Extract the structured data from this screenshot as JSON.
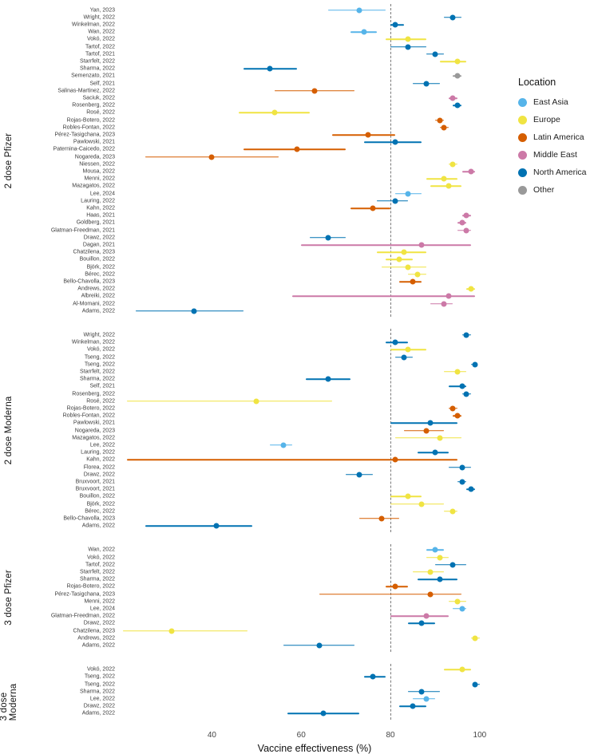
{
  "chart_data": {
    "type": "scatter",
    "subtype": "forest-plot",
    "title": "",
    "xlabel": "Vaccine effectiveness (%)",
    "ylabel": "",
    "xlim": [
      19,
      107
    ],
    "x_ticks": [
      40,
      60,
      80,
      100
    ],
    "reference_line": 80,
    "grid": false,
    "legend": {
      "title": "Location",
      "position": "right",
      "entries": [
        {
          "label": "East Asia",
          "color": "#56B4E9"
        },
        {
          "label": "Europe",
          "color": "#F0E442"
        },
        {
          "label": "Latin America",
          "color": "#D55E00"
        },
        {
          "label": "Middle East",
          "color": "#CC79A7"
        },
        {
          "label": "North America",
          "color": "#0072B2"
        },
        {
          "label": "Other",
          "color": "#999999"
        }
      ]
    },
    "panels": [
      {
        "label": "2 dose Pfizer",
        "studies": [
          {
            "study": "Yan, 2023",
            "location": "East Asia",
            "est": 73,
            "lo": 66,
            "hi": 79
          },
          {
            "study": "Wright, 2022",
            "location": "North America",
            "est": 94,
            "lo": 92,
            "hi": 96
          },
          {
            "study": "Winkelman, 2022",
            "location": "North America",
            "est": 81,
            "lo": 80,
            "hi": 83
          },
          {
            "study": "Wan, 2022",
            "location": "East Asia",
            "est": 74,
            "lo": 71,
            "hi": 77
          },
          {
            "study": "Vokó, 2022",
            "location": "Europe",
            "est": 84,
            "lo": 79,
            "hi": 88
          },
          {
            "study": "Tartof, 2022",
            "location": "North America",
            "est": 84,
            "lo": 80,
            "hi": 88
          },
          {
            "study": "Tartof, 2021",
            "location": "North America",
            "est": 90,
            "lo": 88,
            "hi": 92
          },
          {
            "study": "Starrfelt, 2022",
            "location": "Europe",
            "est": 95,
            "lo": 91,
            "hi": 97
          },
          {
            "study": "Sharma, 2022",
            "location": "North America",
            "est": 53,
            "lo": 47,
            "hi": 59
          },
          {
            "study": "Semenzato, 2021",
            "location": "Other",
            "est": 95,
            "lo": 94,
            "hi": 96
          },
          {
            "study": "Self, 2021",
            "location": "North America",
            "est": 88,
            "lo": 85,
            "hi": 91
          },
          {
            "study": "Salinas-Martinez, 2022",
            "location": "Latin America",
            "est": 63,
            "lo": 54,
            "hi": 72
          },
          {
            "study": "Saciuk, 2022",
            "location": "Middle East",
            "est": 94,
            "lo": 93,
            "hi": 95
          },
          {
            "study": "Rosenberg, 2022",
            "location": "North America",
            "est": 95,
            "lo": 94,
            "hi": 96
          },
          {
            "study": "Rosé, 2022",
            "location": "Europe",
            "est": 54,
            "lo": 46,
            "hi": 62
          },
          {
            "study": "Rojas-Botero, 2022",
            "location": "Latin America",
            "est": 91,
            "lo": 90,
            "hi": 92
          },
          {
            "study": "Robles-Fontan, 2022",
            "location": "Latin America",
            "est": 92,
            "lo": 91,
            "hi": 93
          },
          {
            "study": "Pérez-Tasigchana, 2023",
            "location": "Latin America",
            "est": 75,
            "lo": 67,
            "hi": 81
          },
          {
            "study": "Pawlowski, 2021",
            "location": "North America",
            "est": 81,
            "lo": 74,
            "hi": 87
          },
          {
            "study": "Paternina-Caicedo, 2022",
            "location": "Latin America",
            "est": 59,
            "lo": 47,
            "hi": 70
          },
          {
            "study": "Nogareda, 2023",
            "location": "Latin America",
            "est": 40,
            "lo": 25,
            "hi": 55
          },
          {
            "study": "Niessen, 2022",
            "location": "Europe",
            "est": 94,
            "lo": 93,
            "hi": 95
          },
          {
            "study": "Mousa, 2022",
            "location": "Middle East",
            "est": 98,
            "lo": 96,
            "hi": 99
          },
          {
            "study": "Menni, 2022",
            "location": "Europe",
            "est": 92,
            "lo": 88,
            "hi": 95
          },
          {
            "study": "Mazagatos, 2022",
            "location": "Europe",
            "est": 93,
            "lo": 89,
            "hi": 96
          },
          {
            "study": "Lee, 2024",
            "location": "East Asia",
            "est": 84,
            "lo": 81,
            "hi": 87
          },
          {
            "study": "Lauring, 2022",
            "location": "North America",
            "est": 81,
            "lo": 77,
            "hi": 84
          },
          {
            "study": "Kahn, 2022",
            "location": "Latin America",
            "est": 76,
            "lo": 71,
            "hi": 80
          },
          {
            "study": "Haas, 2021",
            "location": "Middle East",
            "est": 97,
            "lo": 96,
            "hi": 98
          },
          {
            "study": "Goldberg, 2021",
            "location": "Middle East",
            "est": 96,
            "lo": 95,
            "hi": 97
          },
          {
            "study": "Glatman-Freedman, 2021",
            "location": "Middle East",
            "est": 97,
            "lo": 95,
            "hi": 98
          },
          {
            "study": "Drawz, 2022",
            "location": "North America",
            "est": 66,
            "lo": 62,
            "hi": 70
          },
          {
            "study": "Dagan, 2021",
            "location": "Middle East",
            "est": 87,
            "lo": 60,
            "hi": 98
          },
          {
            "study": "Chatzilena, 2023",
            "location": "Europe",
            "est": 83,
            "lo": 77,
            "hi": 88
          },
          {
            "study": "Bouillon, 2022",
            "location": "Europe",
            "est": 82,
            "lo": 79,
            "hi": 85
          },
          {
            "study": "Björk, 2022",
            "location": "Europe",
            "est": 84,
            "lo": 78,
            "hi": 88
          },
          {
            "study": "Bérec, 2022",
            "location": "Europe",
            "est": 86,
            "lo": 84,
            "hi": 88
          },
          {
            "study": "Bello-Chavolla, 2023",
            "location": "Latin America",
            "est": 85,
            "lo": 82,
            "hi": 87
          },
          {
            "study": "Andrews, 2022",
            "location": "Europe",
            "est": 98,
            "lo": 97,
            "hi": 99
          },
          {
            "study": "Albreiki, 2022",
            "location": "Middle East",
            "est": 93,
            "lo": 58,
            "hi": 99
          },
          {
            "study": "Al-Momani, 2022",
            "location": "Middle East",
            "est": 92,
            "lo": 89,
            "hi": 94
          },
          {
            "study": "Adams, 2022",
            "location": "North America",
            "est": 36,
            "lo": 23,
            "hi": 47
          }
        ]
      },
      {
        "label": "2 dose Moderna",
        "studies": [
          {
            "study": "Wright, 2022",
            "location": "North America",
            "est": 97,
            "lo": 96,
            "hi": 98
          },
          {
            "study": "Winkelman, 2022",
            "location": "North America",
            "est": 81,
            "lo": 79,
            "hi": 84
          },
          {
            "study": "Vokó, 2022",
            "location": "Europe",
            "est": 84,
            "lo": 80,
            "hi": 88
          },
          {
            "study": "Tseng, 2022",
            "location": "North America",
            "est": 83,
            "lo": 81,
            "hi": 85
          },
          {
            "study": "Tseng, 2022",
            "location": "North America",
            "est": 99,
            "lo": 98,
            "hi": 99
          },
          {
            "study": "Starrfelt, 2022",
            "location": "Europe",
            "est": 95,
            "lo": 92,
            "hi": 97
          },
          {
            "study": "Sharma, 2022",
            "location": "North America",
            "est": 66,
            "lo": 61,
            "hi": 71
          },
          {
            "study": "Self, 2021",
            "location": "North America",
            "est": 96,
            "lo": 93,
            "hi": 97
          },
          {
            "study": "Rosenberg, 2022",
            "location": "North America",
            "est": 97,
            "lo": 96,
            "hi": 98
          },
          {
            "study": "Rosé, 2022",
            "location": "Europe",
            "est": 50,
            "lo": 21,
            "hi": 67
          },
          {
            "study": "Rojas-Botero, 2022",
            "location": "Latin America",
            "est": 94,
            "lo": 93,
            "hi": 95
          },
          {
            "study": "Robles-Fontan, 2022",
            "location": "Latin America",
            "est": 95,
            "lo": 94,
            "hi": 96
          },
          {
            "study": "Pawlowski, 2021",
            "location": "North America",
            "est": 89,
            "lo": 80,
            "hi": 95
          },
          {
            "study": "Nogareda, 2023",
            "location": "Latin America",
            "est": 88,
            "lo": 83,
            "hi": 92
          },
          {
            "study": "Mazagatos, 2022",
            "location": "Europe",
            "est": 91,
            "lo": 81,
            "hi": 96
          },
          {
            "study": "Lee, 2022",
            "location": "East Asia",
            "est": 56,
            "lo": 53,
            "hi": 58
          },
          {
            "study": "Lauring, 2022",
            "location": "North America",
            "est": 90,
            "lo": 86,
            "hi": 93
          },
          {
            "study": "Kahn, 2022",
            "location": "Latin America",
            "est": 81,
            "lo": 21,
            "hi": 95
          },
          {
            "study": "Florea, 2022",
            "location": "North America",
            "est": 96,
            "lo": 93,
            "hi": 98
          },
          {
            "study": "Drawz, 2022",
            "location": "North America",
            "est": 73,
            "lo": 70,
            "hi": 76
          },
          {
            "study": "Bruxvoort, 2021",
            "location": "North America",
            "est": 96,
            "lo": 95,
            "hi": 97
          },
          {
            "study": "Bruxvoort, 2021",
            "location": "North America",
            "est": 98,
            "lo": 97,
            "hi": 99
          },
          {
            "study": "Bouillon, 2022",
            "location": "Europe",
            "est": 84,
            "lo": 80,
            "hi": 87
          },
          {
            "study": "Björk, 2022",
            "location": "Europe",
            "est": 87,
            "lo": 80,
            "hi": 92
          },
          {
            "study": "Bérec, 2022",
            "location": "Europe",
            "est": 94,
            "lo": 92,
            "hi": 95
          },
          {
            "study": "Bello-Chavolla, 2023",
            "location": "Latin America",
            "est": 78,
            "lo": 73,
            "hi": 82
          },
          {
            "study": "Adams, 2022",
            "location": "North America",
            "est": 41,
            "lo": 25,
            "hi": 49
          }
        ]
      },
      {
        "label": "3 dose Pfizer",
        "studies": [
          {
            "study": "Wan, 2022",
            "location": "East Asia",
            "est": 90,
            "lo": 88,
            "hi": 92
          },
          {
            "study": "Vokó, 2022",
            "location": "Europe",
            "est": 91,
            "lo": 88,
            "hi": 93
          },
          {
            "study": "Tartof, 2022",
            "location": "North America",
            "est": 94,
            "lo": 90,
            "hi": 97
          },
          {
            "study": "Starrfelt, 2022",
            "location": "Europe",
            "est": 89,
            "lo": 85,
            "hi": 92
          },
          {
            "study": "Sharma, 2022",
            "location": "North America",
            "est": 91,
            "lo": 86,
            "hi": 95
          },
          {
            "study": "Rojas-Botero, 2022",
            "location": "Latin America",
            "est": 81,
            "lo": 79,
            "hi": 84
          },
          {
            "study": "Pérez-Tasigchana, 2023",
            "location": "Latin America",
            "est": 89,
            "lo": 64,
            "hi": 96
          },
          {
            "study": "Menni, 2022",
            "location": "Europe",
            "est": 95,
            "lo": 93,
            "hi": 97
          },
          {
            "study": "Lee, 2024",
            "location": "East Asia",
            "est": 96,
            "lo": 94,
            "hi": 97
          },
          {
            "study": "Glatman-Freedman, 2022",
            "location": "Middle East",
            "est": 88,
            "lo": 80,
            "hi": 93
          },
          {
            "study": "Drawz, 2022",
            "location": "North America",
            "est": 87,
            "lo": 84,
            "hi": 90
          },
          {
            "study": "Chatzilena, 2023",
            "location": "Europe",
            "est": 31,
            "lo": 20,
            "hi": 48
          },
          {
            "study": "Andrews, 2022",
            "location": "Europe",
            "est": 99,
            "lo": 98,
            "hi": 100
          },
          {
            "study": "Adams, 2022",
            "location": "North America",
            "est": 64,
            "lo": 56,
            "hi": 72
          }
        ]
      },
      {
        "label": "3 dose Moderna",
        "studies": [
          {
            "study": "Vokó, 2022",
            "location": "Europe",
            "est": 96,
            "lo": 92,
            "hi": 98
          },
          {
            "study": "Tseng, 2022",
            "location": "North America",
            "est": 76,
            "lo": 74,
            "hi": 79
          },
          {
            "study": "Tseng, 2022",
            "location": "North America",
            "est": 99,
            "lo": 99,
            "hi": 100
          },
          {
            "study": "Sharma, 2022",
            "location": "North America",
            "est": 87,
            "lo": 84,
            "hi": 91
          },
          {
            "study": "Lee, 2022",
            "location": "East Asia",
            "est": 88,
            "lo": 85,
            "hi": 90
          },
          {
            "study": "Drawz, 2022",
            "location": "North America",
            "est": 85,
            "lo": 82,
            "hi": 88
          },
          {
            "study": "Adams, 2022",
            "location": "North America",
            "est": 65,
            "lo": 57,
            "hi": 73
          }
        ]
      }
    ]
  }
}
